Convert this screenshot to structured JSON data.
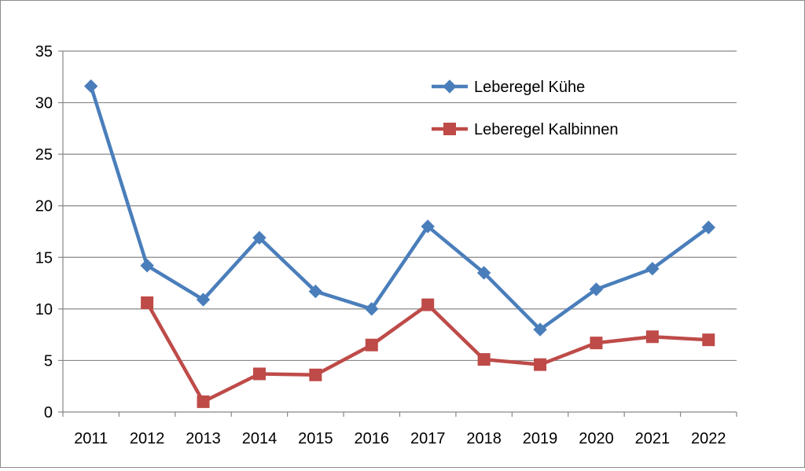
{
  "chart_data": {
    "type": "line",
    "title": "",
    "xlabel": "",
    "ylabel": "",
    "categories": [
      "2011",
      "2012",
      "2013",
      "2014",
      "2015",
      "2016",
      "2017",
      "2018",
      "2019",
      "2020",
      "2021",
      "2022"
    ],
    "ylim": [
      0,
      35
    ],
    "yticks": [
      "0",
      "5",
      "10",
      "15",
      "20",
      "25",
      "30",
      "35"
    ],
    "grid": true,
    "legend_position": "top-right",
    "series": [
      {
        "name": "Leberegel Kühe",
        "color": "#4a7ebb",
        "marker": "diamond",
        "values": [
          31.6,
          14.2,
          10.9,
          16.9,
          11.7,
          10.0,
          18.0,
          13.5,
          8.0,
          11.9,
          13.9,
          17.9
        ]
      },
      {
        "name": "Leberegel Kalbinnen",
        "color": "#be4b48",
        "marker": "square",
        "values": [
          null,
          10.6,
          1.0,
          3.7,
          3.6,
          6.5,
          10.4,
          5.1,
          4.6,
          6.7,
          7.3,
          7.0
        ]
      }
    ]
  }
}
